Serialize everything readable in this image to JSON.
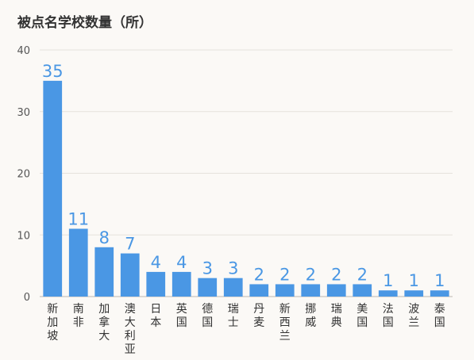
{
  "chart_data": {
    "type": "bar",
    "title": "被点名学校数量（所）",
    "categories": [
      "新加坡",
      "南非",
      "加拿大",
      "澳大利亚",
      "日本",
      "英国",
      "德国",
      "瑞士",
      "丹麦",
      "新西兰",
      "挪威",
      "瑞典",
      "美国",
      "法国",
      "波兰",
      "泰国"
    ],
    "values": [
      35,
      11,
      8,
      7,
      4,
      4,
      3,
      3,
      2,
      2,
      2,
      2,
      2,
      1,
      1,
      1
    ],
    "yticks": [
      0,
      10,
      20,
      30,
      40
    ],
    "ylim": [
      0,
      40
    ],
    "grid": true,
    "colors": {
      "bar": "#4a97e4",
      "label": "#4a97e4"
    }
  }
}
